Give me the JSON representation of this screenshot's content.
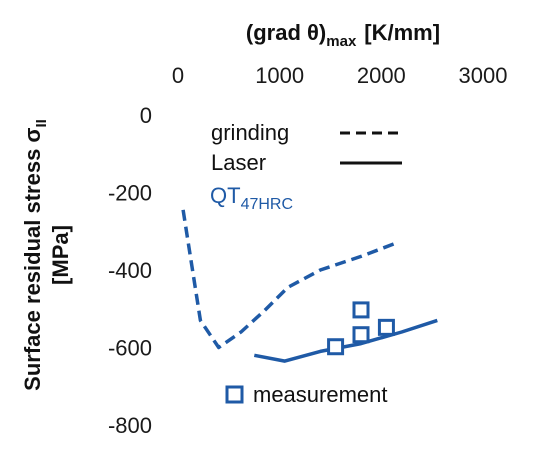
{
  "chart_data": {
    "type": "line",
    "xlabel": {
      "main": "(grad θ)",
      "sub": "max",
      "unit": "[K/mm]"
    },
    "ylabel": {
      "main": "Surface residual stress σ",
      "sub": "II",
      "unit": "[MPa]"
    },
    "xlim": [
      0,
      3500
    ],
    "ylim": [
      -800,
      0
    ],
    "xticks": [
      0,
      1000,
      2000,
      3000
    ],
    "yticks": [
      0,
      -200,
      -400,
      -600,
      -800
    ],
    "x_axis_position": "top",
    "grid": false,
    "series": [
      {
        "name": "grinding",
        "style": "dashed",
        "color": "#1f5aa6",
        "x": [
          50,
          220,
          400,
          620,
          850,
          1080,
          1400,
          1800,
          2150
        ],
        "y": [
          -245,
          -530,
          -600,
          -560,
          -505,
          -445,
          -400,
          -365,
          -330
        ]
      },
      {
        "name": "Laser",
        "style": "solid",
        "color": "#1f5aa6",
        "x": [
          750,
          1050,
          1400,
          1800,
          2200,
          2550
        ],
        "y": [
          -620,
          -635,
          -610,
          -590,
          -560,
          -530
        ]
      },
      {
        "name": "measurement",
        "style": "markers",
        "marker": "square",
        "color": "#1f5aa6",
        "x": [
          1550,
          1800,
          1800,
          2050
        ],
        "y": [
          -598,
          -503,
          -567,
          -548
        ]
      }
    ],
    "legend": [
      {
        "label": "grinding",
        "style": "dashed",
        "color": "#111111"
      },
      {
        "label": "Laser",
        "style": "solid",
        "color": "#111111"
      }
    ],
    "legend_position": "top-right",
    "annotation": {
      "main": "QT",
      "sub": "47HRC",
      "color": "#1f5aa6"
    },
    "measurement_label": "measurement"
  }
}
